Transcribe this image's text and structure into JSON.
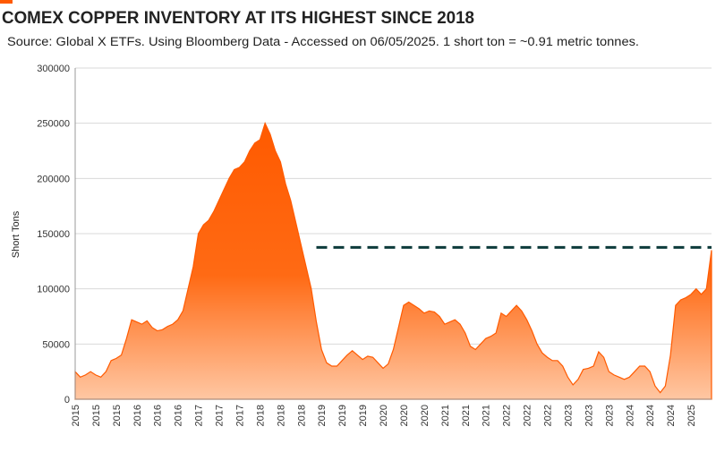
{
  "chart_data": {
    "type": "area",
    "title": "COMEX COPPER INVENTORY AT ITS HIGHEST SINCE 2018",
    "subtitle": "Source: Global X ETFs. Using Bloomberg Data - Accessed on 06/05/2025. 1 short ton = ~0.91 metric tonnes.",
    "y_label": "Short Tons",
    "categories": [
      "2015",
      null,
      null,
      null,
      "2015",
      null,
      null,
      null,
      "2015",
      null,
      null,
      null,
      "2016",
      null,
      null,
      null,
      "2016",
      null,
      null,
      null,
      "2016",
      null,
      null,
      null,
      "2017",
      null,
      null,
      null,
      "2017",
      null,
      null,
      null,
      "2017",
      null,
      null,
      null,
      "2018",
      null,
      null,
      null,
      "2018",
      null,
      null,
      null,
      "2018",
      null,
      null,
      null,
      "2019",
      null,
      null,
      null,
      "2019",
      null,
      null,
      null,
      "2019",
      null,
      null,
      null,
      "2020",
      null,
      null,
      null,
      "2020",
      null,
      null,
      null,
      "2020",
      null,
      null,
      null,
      "2021",
      null,
      null,
      null,
      "2021",
      null,
      null,
      null,
      "2021",
      null,
      null,
      null,
      "2022",
      null,
      null,
      null,
      "2022",
      null,
      null,
      null,
      "2022",
      null,
      null,
      null,
      "2023",
      null,
      null,
      null,
      "2023",
      null,
      null,
      null,
      "2023",
      null,
      null,
      null,
      "2024",
      null,
      null,
      null,
      "2024",
      null,
      null,
      null,
      "2024",
      null,
      null,
      null,
      "2025",
      null,
      null,
      null,
      null
    ],
    "series": [
      {
        "name": "COMEX Copper Inventory",
        "color": "#ff5a00",
        "values": [
          25000,
          20000,
          22000,
          25000,
          22000,
          20000,
          25000,
          35000,
          37000,
          40000,
          55000,
          72000,
          70000,
          68000,
          71000,
          65000,
          62000,
          63000,
          66000,
          68000,
          72000,
          80000,
          100000,
          120000,
          150000,
          158000,
          162000,
          170000,
          180000,
          190000,
          200000,
          208000,
          210000,
          215000,
          225000,
          232000,
          235000,
          250000,
          240000,
          225000,
          215000,
          195000,
          180000,
          160000,
          140000,
          120000,
          100000,
          70000,
          45000,
          33000,
          30000,
          30000,
          35000,
          40000,
          44000,
          40000,
          36000,
          39000,
          38000,
          33000,
          28000,
          32000,
          45000,
          65000,
          85000,
          88000,
          85000,
          82000,
          78000,
          80000,
          79000,
          75000,
          68000,
          70000,
          72000,
          68000,
          60000,
          48000,
          45000,
          50000,
          55000,
          57000,
          60000,
          78000,
          75000,
          80000,
          85000,
          80000,
          72000,
          62000,
          50000,
          42000,
          38000,
          35000,
          35000,
          30000,
          20000,
          13000,
          18000,
          27000,
          28000,
          30000,
          43000,
          38000,
          25000,
          22000,
          20000,
          18000,
          20000,
          25000,
          30000,
          30000,
          25000,
          12000,
          6000,
          12000,
          40000,
          85000,
          90000,
          92000,
          95000,
          100000,
          95000,
          100000,
          135000
        ]
      }
    ],
    "reference_line": {
      "value": 137500,
      "start": 47,
      "color": "#0d3b3b",
      "dashed": true
    },
    "ylim": [
      0,
      300000
    ],
    "yticks": [
      0,
      50000,
      100000,
      150000,
      200000,
      250000,
      300000
    ],
    "grid": true
  }
}
